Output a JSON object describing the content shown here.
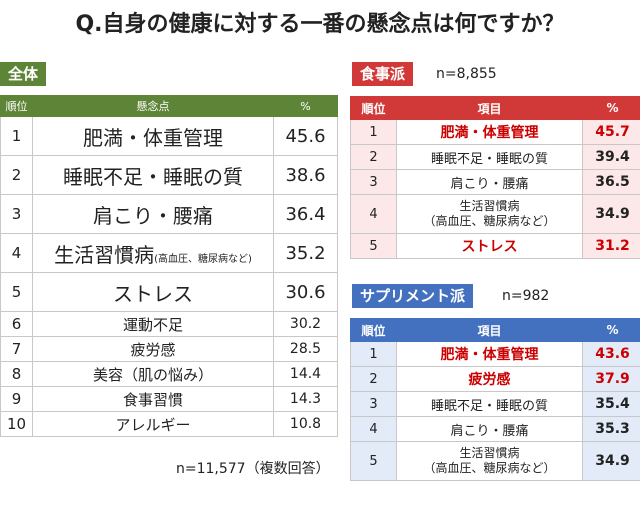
{
  "title": "Q.自身の健康に対する一番の懸念点は何ですか？",
  "overall": {
    "tag": "全体",
    "headers": {
      "rank": "順位",
      "item": "懸念点",
      "pct": "%"
    },
    "rows": [
      {
        "rank": "1",
        "item": "肥満・体重管理",
        "note": "",
        "pct": "45.6"
      },
      {
        "rank": "2",
        "item": "睡眠不足・睡眠の質",
        "note": "",
        "pct": "38.6"
      },
      {
        "rank": "3",
        "item": "肩こり・腰痛",
        "note": "",
        "pct": "36.4"
      },
      {
        "rank": "4",
        "item": "生活習慣病",
        "note": "(高血圧、糖尿病など)",
        "pct": "35.2"
      },
      {
        "rank": "5",
        "item": "ストレス",
        "note": "",
        "pct": "30.6"
      },
      {
        "rank": "6",
        "item": "運動不足",
        "note": "",
        "pct": "30.2"
      },
      {
        "rank": "7",
        "item": "疲労感",
        "note": "",
        "pct": "28.5"
      },
      {
        "rank": "8",
        "item": "美容（肌の悩み）",
        "note": "",
        "pct": "14.4"
      },
      {
        "rank": "9",
        "item": "食事習慣",
        "note": "",
        "pct": "14.3"
      },
      {
        "rank": "10",
        "item": "アレルギー",
        "note": "",
        "pct": "10.8"
      }
    ],
    "n_label": "n=11,577（複数回答）"
  },
  "diet": {
    "tag": "食事派",
    "n_label": "n=8,855",
    "headers": {
      "rank": "順位",
      "item": "項目",
      "pct": "%"
    },
    "rows": [
      {
        "rank": "1",
        "item": "肥満・体重管理",
        "item2": "",
        "pct": "45.7"
      },
      {
        "rank": "2",
        "item": "睡眠不足・睡眠の質",
        "item2": "",
        "pct": "39.4"
      },
      {
        "rank": "3",
        "item": "肩こり・腰痛",
        "item2": "",
        "pct": "36.5"
      },
      {
        "rank": "4",
        "item": "生活習慣病",
        "item2": "（高血圧、糖尿病など）",
        "pct": "34.9"
      },
      {
        "rank": "5",
        "item": "ストレス",
        "item2": "",
        "pct": "31.2"
      }
    ]
  },
  "supplement": {
    "tag": "サプリメント派",
    "n_label": "n=982",
    "headers": {
      "rank": "順位",
      "item": "項目",
      "pct": "%"
    },
    "rows": [
      {
        "rank": "1",
        "item": "肥満・体重管理",
        "item2": "",
        "pct": "43.6"
      },
      {
        "rank": "2",
        "item": "疲労感",
        "item2": "",
        "pct": "37.9"
      },
      {
        "rank": "3",
        "item": "睡眠不足・睡眠の質",
        "item2": "",
        "pct": "35.4"
      },
      {
        "rank": "4",
        "item": "肩こり・腰痛",
        "item2": "",
        "pct": "35.3"
      },
      {
        "rank": "5",
        "item": "生活習慣病",
        "item2": "（高血圧、糖尿病など）",
        "pct": "34.9"
      }
    ]
  },
  "colors": {
    "overall": "#5e8537",
    "diet": "#d13838",
    "supplement": "#4470c0",
    "highlight": "#cc0000"
  }
}
